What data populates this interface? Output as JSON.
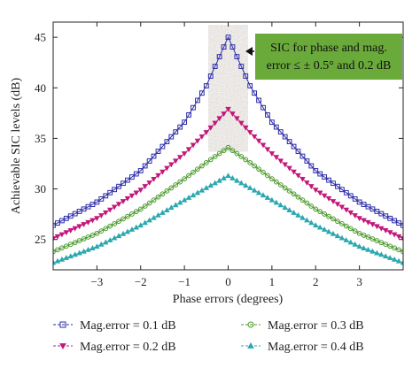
{
  "chart_data": {
    "type": "line",
    "xlabel": "Phase errors (degrees)",
    "ylabel": "Achievable SIC levels (dB)",
    "xlim": [
      -4,
      4
    ],
    "ylim": [
      22,
      46.5
    ],
    "xticks": [
      -3,
      -2,
      -1,
      0,
      1,
      2,
      3
    ],
    "yticks": [
      25,
      30,
      35,
      40,
      45
    ],
    "grid": false,
    "legend_position": "bottom",
    "annotation": {
      "text_line1": "SIC for phase and mag.",
      "text_line2": "error ≤ ± 0.5° and 0.2 dB",
      "box_color": "#6aaa3a",
      "highlight_x": [
        -0.45,
        0.45
      ],
      "highlight_y": [
        33.7,
        46.2
      ]
    },
    "series": [
      {
        "name": "Mag.error = 0.1 dB",
        "marker": "square",
        "color": "#2b2ba8",
        "mag_error_db": 0.1,
        "x": [
          -4.0,
          -3.0,
          -2.0,
          -1.0,
          -0.5,
          0.0,
          0.5,
          1.0,
          2.0,
          3.0,
          4.0
        ],
        "y": [
          26.4,
          28.7,
          31.8,
          36.6,
          40.2,
          45.0,
          40.2,
          36.6,
          31.8,
          28.7,
          26.4
        ]
      },
      {
        "name": "Mag.error = 0.2 dB",
        "marker": "triangle-down",
        "color": "#c2187a",
        "mag_error_db": 0.2,
        "x": [
          -4.0,
          -3.0,
          -2.0,
          -1.0,
          -0.5,
          0.0,
          0.5,
          1.0,
          2.0,
          3.0,
          4.0
        ],
        "y": [
          25.1,
          27.1,
          29.9,
          33.5,
          35.6,
          37.9,
          35.6,
          33.5,
          29.9,
          27.1,
          25.1
        ]
      },
      {
        "name": "Mag.error = 0.3 dB",
        "marker": "circle",
        "color": "#4a9a2a",
        "mag_error_db": 0.3,
        "x": [
          -4.0,
          -3.0,
          -2.0,
          -1.0,
          -0.5,
          0.0,
          0.5,
          1.0,
          2.0,
          3.0,
          4.0
        ],
        "y": [
          23.8,
          25.6,
          28.0,
          31.0,
          32.6,
          34.1,
          32.6,
          31.0,
          28.0,
          25.6,
          23.8
        ]
      },
      {
        "name": "Mag.error = 0.4 dB",
        "marker": "triangle-up",
        "color": "#2aa8b0",
        "mag_error_db": 0.4,
        "x": [
          -4.0,
          -3.0,
          -2.0,
          -1.0,
          -0.5,
          0.0,
          0.5,
          1.0,
          2.0,
          3.0,
          4.0
        ],
        "y": [
          22.7,
          24.3,
          26.4,
          28.9,
          30.1,
          31.3,
          30.1,
          28.9,
          26.4,
          24.3,
          22.7
        ]
      }
    ]
  }
}
